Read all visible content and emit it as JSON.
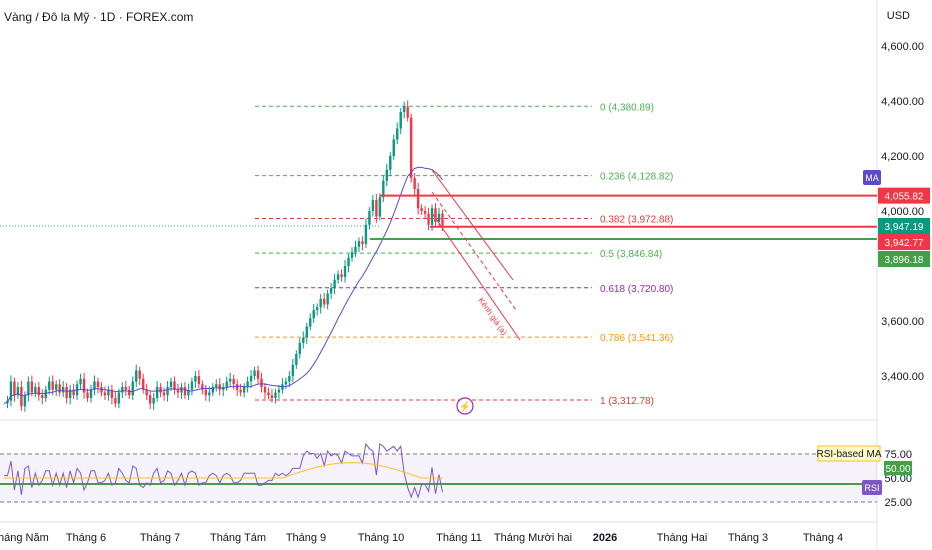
{
  "header": {
    "title": "Vàng / Đô la Mỹ · 1D · FOREX.com",
    "currency": "USD"
  },
  "chart_data": {
    "type": "candlestick",
    "price_axis": {
      "ticks": [
        "4,600.00",
        "4,400.00",
        "4,200.00",
        "4,000.00",
        "3,600.00",
        "3,400.00"
      ]
    },
    "time_axis": {
      "labels": [
        "Tháng Năm",
        "Tháng 6",
        "Tháng 7",
        "Tháng Tám",
        "Tháng 9",
        "Tháng 10",
        "Tháng 11",
        "Tháng Mười hai",
        "2026",
        "Tháng Hai",
        "Tháng 3",
        "Tháng 4"
      ]
    },
    "fibonacci": [
      {
        "level": 0,
        "price": 4380.89,
        "label": "0 (4,380.89)",
        "color": "#4caf50"
      },
      {
        "level": 0.236,
        "price": 4128.82,
        "label": "0.236 (4,128.82)",
        "color": "#4caf50"
      },
      {
        "level": 0.382,
        "price": 3972.88,
        "label": "0.382 (3,972.88)",
        "color": "#e53935"
      },
      {
        "level": 0.5,
        "price": 3846.84,
        "label": "0.5 (3,846.84)",
        "color": "#4caf50"
      },
      {
        "level": 0.618,
        "price": 3720.8,
        "label": "0.618 (3,720.80)",
        "color": "#9c27b0"
      },
      {
        "level": 0.786,
        "price": 3541.36,
        "label": "0.786 (3,541.36)",
        "color": "#ff9800"
      },
      {
        "level": 1,
        "price": 3312.78,
        "label": "1 (3,312.78)",
        "color": "#e53935"
      }
    ],
    "horizontal_levels": [
      {
        "price": 4055.82,
        "label": "4,055.82",
        "color": "#f23645"
      },
      {
        "price": 3947.19,
        "label": "3,947.19",
        "color": "#089981"
      },
      {
        "price": 3942.77,
        "label": "3,942.77",
        "color": "#f23645"
      },
      {
        "price": 3896.18,
        "label": "3,896.18",
        "color": "#43a047"
      }
    ],
    "channel_label": "Kênh giá (a)",
    "indicator_labels": {
      "ma": "MA",
      "rsi_ma": "RSI-based MA",
      "rsi": "RSI"
    },
    "rsi": {
      "ticks": [
        "75.00",
        "50.00",
        "25.00"
      ],
      "value": 50.0,
      "value_label": "50.00",
      "ma_line_level": 48
    },
    "price_path": [
      3300,
      3310,
      3380,
      3330,
      3360,
      3290,
      3330,
      3380,
      3340,
      3360,
      3330,
      3320,
      3350,
      3380,
      3350,
      3370,
      3340,
      3360,
      3320,
      3350,
      3330,
      3370,
      3390,
      3340,
      3320,
      3350,
      3380,
      3360,
      3340,
      3330,
      3350,
      3320,
      3300,
      3340,
      3360,
      3350,
      3330,
      3380,
      3420,
      3390,
      3350,
      3330,
      3300,
      3320,
      3360,
      3340,
      3330,
      3360,
      3380,
      3350,
      3340,
      3360,
      3330,
      3350,
      3380,
      3400,
      3370,
      3350,
      3330,
      3340,
      3360,
      3370,
      3350,
      3360,
      3380,
      3390,
      3370,
      3350,
      3340,
      3360,
      3380,
      3400,
      3420,
      3390,
      3360,
      3340,
      3330,
      3320,
      3340,
      3350,
      3370,
      3380,
      3400,
      3440,
      3480,
      3520,
      3540,
      3580,
      3610,
      3640,
      3650,
      3680,
      3660,
      3700,
      3720,
      3750,
      3770,
      3760,
      3800,
      3830,
      3850,
      3870,
      3890,
      3880,
      3950,
      4000,
      4040,
      3980,
      4050,
      4110,
      4150,
      4200,
      4260,
      4300,
      4360,
      4380,
      4340,
      4120,
      4080,
      4010,
      4000,
      3990,
      3950,
      4010,
      3960,
      3990,
      3947
    ]
  }
}
